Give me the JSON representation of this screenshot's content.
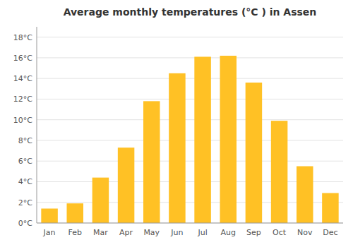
{
  "chart_data": {
    "type": "bar",
    "title": "Average monthly temperatures (°C ) in Assen",
    "categories": [
      "Jan",
      "Feb",
      "Mar",
      "Apr",
      "May",
      "Jun",
      "Jul",
      "Aug",
      "Sep",
      "Oct",
      "Nov",
      "Dec"
    ],
    "values": [
      1.4,
      1.9,
      4.4,
      7.3,
      11.8,
      14.5,
      16.1,
      16.2,
      13.6,
      9.9,
      5.5,
      2.9
    ],
    "color": "#FFC125",
    "ylim": [
      0,
      19.0
    ],
    "yticks": [
      {
        "value": 0,
        "label": "0°C"
      },
      {
        "value": 2,
        "label": "2°C"
      },
      {
        "value": 4,
        "label": "4°C"
      },
      {
        "value": 6,
        "label": "6°C"
      },
      {
        "value": 8,
        "label": "8°C"
      },
      {
        "value": 10,
        "label": "10°C"
      },
      {
        "value": 12,
        "label": "12°C"
      },
      {
        "value": 14,
        "label": "14°C"
      },
      {
        "value": 16,
        "label": "16°C"
      },
      {
        "value": 18,
        "label": "18°C"
      }
    ],
    "grid": true
  }
}
